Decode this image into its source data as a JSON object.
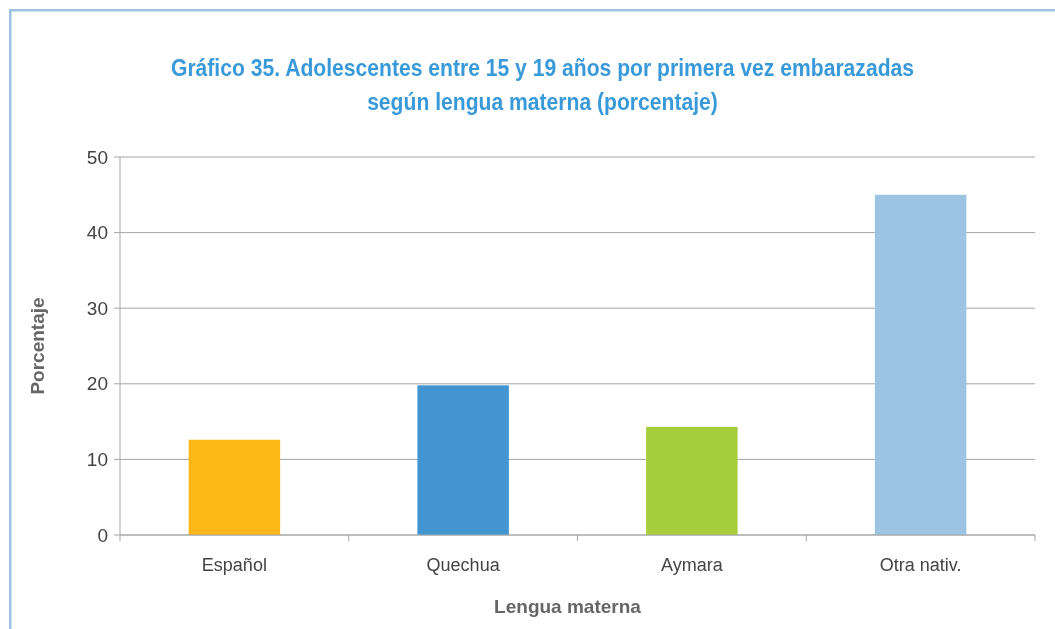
{
  "chart_data": {
    "type": "bar",
    "title": "Gráfico 35. Adolescentes entre 15 y 19 años por primera vez embarazadas\nsegún lengua materna (porcentaje)",
    "xlabel": "Lengua materna",
    "ylabel": "Porcentaje",
    "categories": [
      "Español",
      "Quechua",
      "Aymara",
      "Otra nativ."
    ],
    "values": [
      12.6,
      19.8,
      14.3,
      45.0
    ],
    "colors": [
      "#fbb817",
      "#4295d1",
      "#a6cd3a",
      "#9dc3e3"
    ],
    "ylim": [
      0,
      50
    ],
    "yticks": [
      0,
      10,
      20,
      30,
      40,
      50
    ],
    "grid": "y"
  }
}
